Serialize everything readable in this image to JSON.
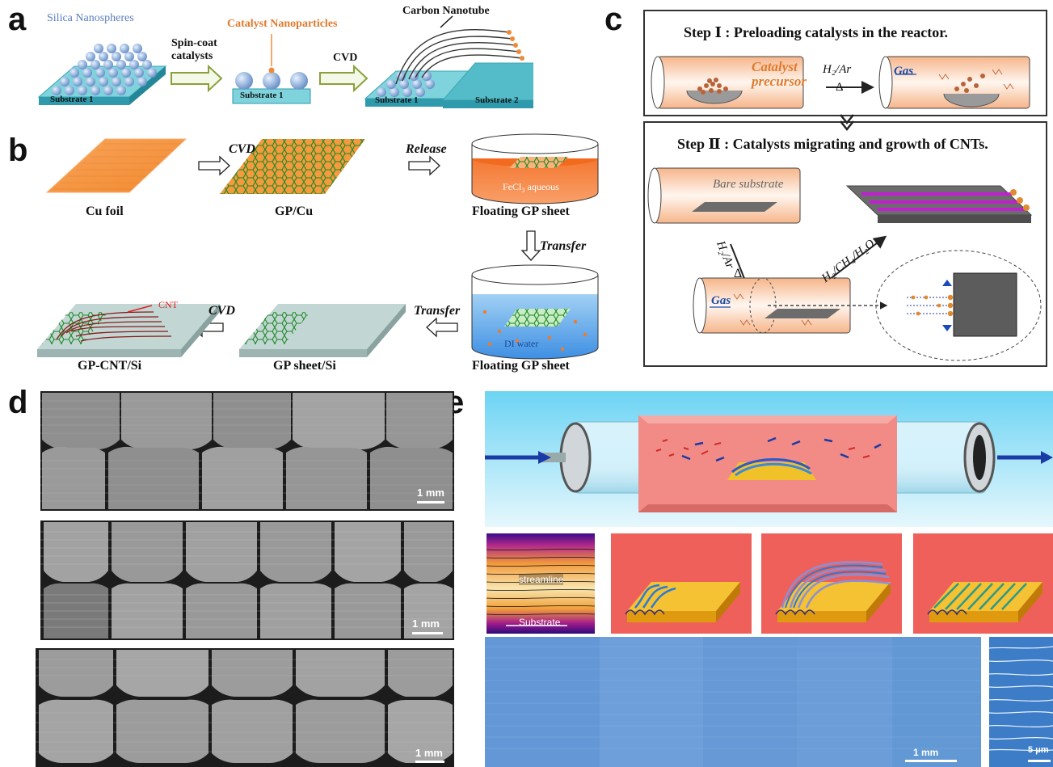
{
  "panels": {
    "a": "a",
    "b": "b",
    "c": "c",
    "d": "d",
    "e": "e"
  },
  "a": {
    "silica": "Silica Nanospheres",
    "spin": "Spin-coat catalysts",
    "catalyst": "Catalyst Nanoparticles",
    "cvd": "CVD",
    "cnt": "Carbon Nanotube",
    "substrate1": "Substrate 1",
    "substrate2": "Substrate 2"
  },
  "b": {
    "cvd": "CVD",
    "release": "Release",
    "transfer": "Transfer",
    "fecl3": "FeCl₃ aqueous",
    "di": "DI water",
    "cnt": "CNT",
    "cu_foil": "Cu foil",
    "gp_cu": "GP/Cu",
    "floating1": "Floating GP sheet",
    "floating2": "Floating GP sheet",
    "gp_cnt": "GP-CNT/Si",
    "gp_sheet": "GP sheet/Si"
  },
  "c": {
    "step1": "Step Ⅰ : Preloading catalysts in the reactor.",
    "step2": "Step Ⅱ : Catalysts migrating and growth of CNTs.",
    "catalyst_precursor": "Catalyst precursor",
    "h2ar": "H₂/Ar",
    "delta": "Δ",
    "gas": "Gas",
    "bare": "Bare substrate",
    "h2ch4": "H₂/CH₄/H₂O"
  },
  "d": {
    "scale1": "1 mm",
    "scale2": "1 mm",
    "scale3": "1 mm"
  },
  "e": {
    "streamline": "streamline",
    "substrate": "Substrate",
    "scale_mm": "1 mm",
    "scale_um": "5 μm"
  }
}
